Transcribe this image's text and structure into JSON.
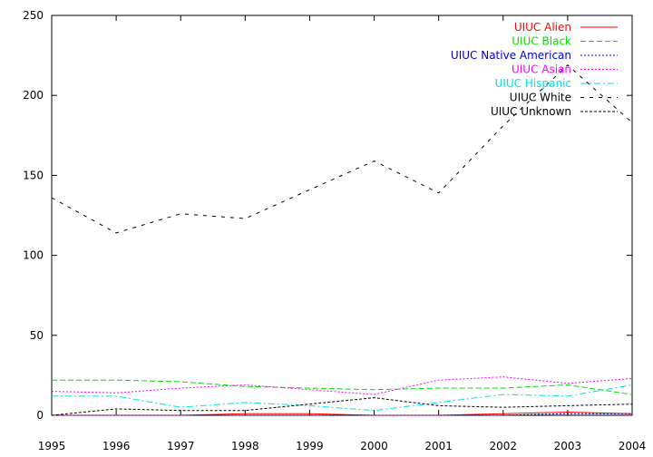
{
  "chart_data": {
    "type": "line",
    "x": [
      1995,
      1996,
      1997,
      1998,
      1999,
      2000,
      2001,
      2002,
      2003,
      2004
    ],
    "xlim": [
      1995,
      2004
    ],
    "ylim": [
      0,
      250
    ],
    "x_ticks": [
      "1995",
      "1996",
      "1997",
      "1998",
      "1999",
      "2000",
      "2001",
      "2002",
      "2003",
      "2004"
    ],
    "y_ticks": [
      "0",
      "50",
      "100",
      "150",
      "200",
      "250"
    ],
    "grid": false,
    "legend_position": "top-right",
    "series": [
      {
        "name": "UIUC Alien",
        "color": "#ff0000",
        "dash": "solid",
        "values": [
          0,
          0,
          0,
          1,
          1,
          0,
          0,
          1,
          2,
          1
        ]
      },
      {
        "name": "UIUC Black",
        "color": "#00dd00",
        "dash": "dashed",
        "values": [
          22,
          22,
          21,
          18,
          17,
          16,
          17,
          17,
          19,
          13
        ]
      },
      {
        "name": "UIUC Native American",
        "color": "#0000cc",
        "dash": "dotted",
        "values": [
          0,
          0,
          0,
          0,
          0,
          0,
          0,
          0,
          1,
          1
        ]
      },
      {
        "name": "UIUC Asian",
        "color": "#ff00ff",
        "dash": "dotted",
        "values": [
          15,
          14,
          17,
          19,
          16,
          13,
          22,
          24,
          20,
          23
        ]
      },
      {
        "name": "UIUC Hispanic",
        "color": "#00e0e0",
        "dash": "dashdot",
        "values": [
          12,
          12,
          5,
          8,
          6,
          3,
          8,
          13,
          12,
          19
        ]
      },
      {
        "name": "UIUC White",
        "color": "#000000",
        "dash": "sparse",
        "values": [
          136,
          114,
          126,
          123,
          141,
          159,
          139,
          181,
          219,
          183
        ]
      },
      {
        "name": "UIUC Unknown",
        "color": "#000000",
        "dash": "dense",
        "values": [
          0,
          4,
          3,
          3,
          7,
          11,
          6,
          5,
          6,
          7
        ]
      }
    ]
  }
}
